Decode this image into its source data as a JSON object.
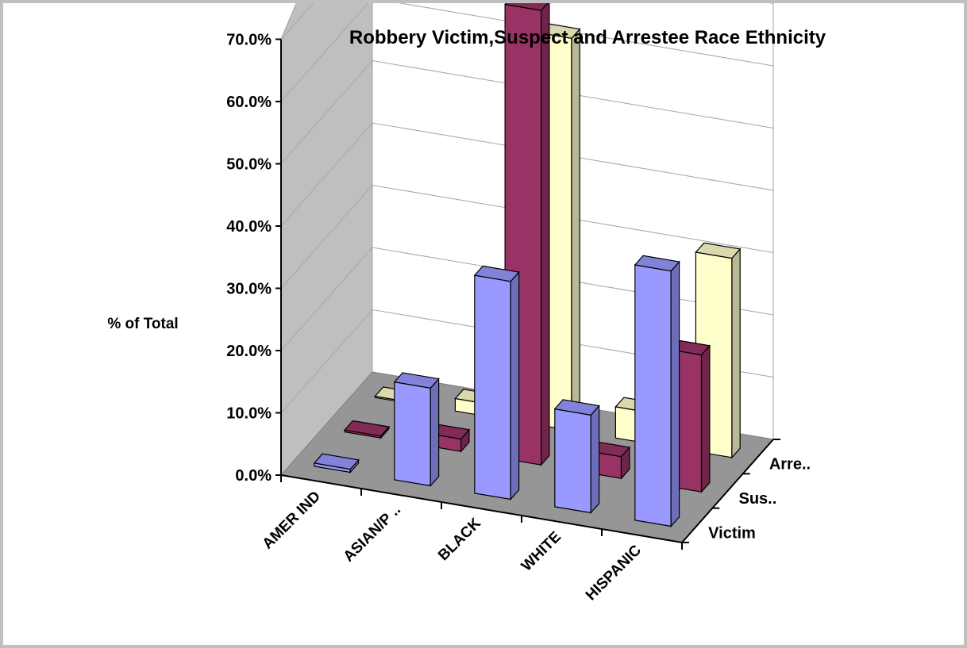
{
  "chart_data": {
    "type": "bar",
    "variant": "3d-clustered-depth",
    "title": "Robbery Victim,Suspect and Arrestee Race Ethnicity",
    "ylabel": "% of Total",
    "xlabel": "",
    "categories": [
      "AMER IND",
      "ASIAN/P ..",
      "BLACK",
      "WHITE",
      "HISPANIC"
    ],
    "series": [
      {
        "name": "Victim",
        "color": "#9999ff",
        "values": [
          0.5,
          15.7,
          35.0,
          15.7,
          41.0
        ]
      },
      {
        "name": "Sus..",
        "color": "#993366",
        "values": [
          0.3,
          2.0,
          73.0,
          3.5,
          22.0
        ]
      },
      {
        "name": "Arre..",
        "color": "#ffffcc",
        "values": [
          0.2,
          2.0,
          63.0,
          5.0,
          32.0
        ]
      }
    ],
    "ylim": [
      0,
      70
    ],
    "yticks": [
      "0.0%",
      "10.0%",
      "20.0%",
      "30.0%",
      "40.0%",
      "50.0%",
      "60.0%",
      "70.0%"
    ],
    "grid": true,
    "legend": "none"
  }
}
